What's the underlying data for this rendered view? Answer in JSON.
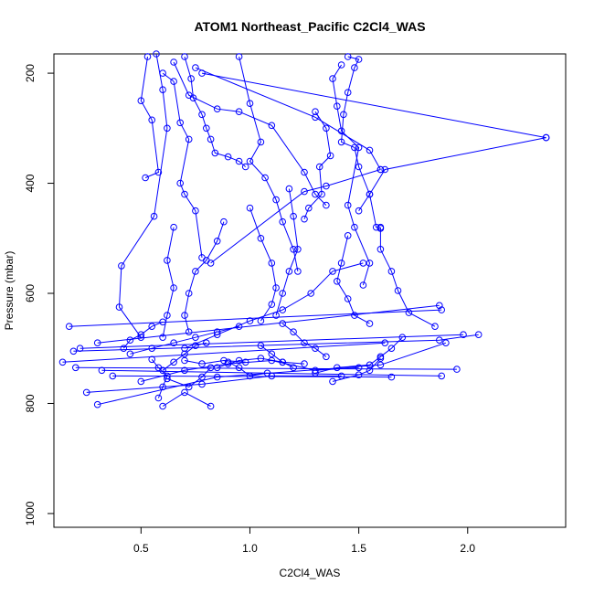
{
  "chart_data": {
    "type": "scatter",
    "title": "ATOM1 Northeast_Pacific C2Cl4_WAS",
    "xlabel": "C2Cl4_WAS",
    "ylabel": "Pressure (mbar)",
    "xlim": [
      0.1,
      2.45
    ],
    "ylim": [
      1025,
      165
    ],
    "y_reversed": true,
    "x_ticks": [
      "0.5",
      "1.0",
      "1.5",
      "2.0"
    ],
    "y_ticks": [
      "200",
      "400",
      "600",
      "800",
      "1000"
    ],
    "grid": false,
    "legend": "none",
    "color": "#0000ff",
    "series": [
      {
        "points": [
          [
            0.53,
            170
          ],
          [
            0.5,
            250
          ],
          [
            0.55,
            285
          ],
          [
            0.58,
            380
          ],
          [
            0.52,
            390
          ]
        ]
      },
      {
        "points": [
          [
            0.57,
            165
          ],
          [
            0.6,
            230
          ],
          [
            0.62,
            300
          ],
          [
            0.56,
            460
          ],
          [
            0.41,
            550
          ],
          [
            0.4,
            625
          ],
          [
            0.5,
            680
          ]
        ]
      },
      {
        "points": [
          [
            0.6,
            200
          ],
          [
            0.65,
            215
          ],
          [
            0.68,
            290
          ],
          [
            0.72,
            320
          ],
          [
            0.68,
            400
          ],
          [
            0.7,
            420
          ],
          [
            0.75,
            450
          ],
          [
            0.78,
            535
          ]
        ]
      },
      {
        "points": [
          [
            0.7,
            170
          ],
          [
            0.73,
            210
          ],
          [
            0.74,
            245
          ],
          [
            0.78,
            275
          ],
          [
            0.8,
            300
          ],
          [
            0.82,
            320
          ],
          [
            0.84,
            345
          ],
          [
            0.9,
            352
          ],
          [
            0.95,
            360
          ],
          [
            0.98,
            370
          ]
        ]
      },
      {
        "points": [
          [
            0.95,
            170
          ],
          [
            1.0,
            255
          ],
          [
            1.05,
            325
          ],
          [
            1.0,
            360
          ],
          [
            1.07,
            390
          ],
          [
            1.12,
            430
          ],
          [
            1.15,
            470
          ],
          [
            1.2,
            520
          ],
          [
            1.22,
            560
          ]
        ]
      },
      {
        "points": [
          [
            0.65,
            180
          ],
          [
            0.72,
            240
          ],
          [
            0.85,
            265
          ],
          [
            0.95,
            270
          ],
          [
            1.1,
            295
          ],
          [
            1.25,
            380
          ],
          [
            1.3,
            420
          ],
          [
            1.35,
            440
          ]
        ]
      },
      {
        "points": [
          [
            1.45,
            170
          ],
          [
            1.5,
            175
          ],
          [
            1.48,
            190
          ],
          [
            1.45,
            235
          ],
          [
            1.43,
            275
          ],
          [
            1.42,
            325
          ],
          [
            1.48,
            335
          ],
          [
            1.5,
            370
          ],
          [
            1.55,
            420
          ],
          [
            1.58,
            480
          ],
          [
            1.6,
            482
          ]
        ]
      },
      {
        "points": [
          [
            1.42,
            185
          ],
          [
            1.38,
            210
          ],
          [
            1.4,
            260
          ],
          [
            1.42,
            305
          ],
          [
            1.5,
            335
          ],
          [
            1.45,
            440
          ],
          [
            1.48,
            480
          ],
          [
            1.55,
            545
          ],
          [
            1.52,
            585
          ]
        ]
      },
      {
        "points": [
          [
            1.3,
            270
          ],
          [
            1.35,
            300
          ],
          [
            1.37,
            350
          ],
          [
            1.32,
            370
          ],
          [
            1.33,
            420
          ],
          [
            1.27,
            445
          ],
          [
            1.25,
            465
          ]
        ]
      },
      {
        "points": [
          [
            2.36,
            317
          ],
          [
            1.62,
            375
          ],
          [
            1.55,
            420
          ],
          [
            1.5,
            450
          ]
        ]
      },
      {
        "points": [
          [
            0.75,
            190
          ],
          [
            1.3,
            280
          ],
          [
            1.55,
            340
          ],
          [
            1.6,
            375
          ]
        ]
      },
      {
        "points": [
          [
            0.78,
            200
          ],
          [
            2.36,
            317
          ]
        ]
      },
      {
        "points": [
          [
            1.18,
            410
          ],
          [
            1.2,
            460
          ],
          [
            1.22,
            520
          ],
          [
            1.18,
            560
          ],
          [
            1.15,
            600
          ],
          [
            1.12,
            640
          ]
        ]
      },
      {
        "points": [
          [
            1.0,
            445
          ],
          [
            1.05,
            500
          ],
          [
            1.1,
            545
          ],
          [
            1.12,
            590
          ],
          [
            1.1,
            620
          ],
          [
            1.05,
            650
          ]
        ]
      },
      {
        "points": [
          [
            0.88,
            470
          ],
          [
            0.85,
            505
          ],
          [
            0.8,
            540
          ],
          [
            0.75,
            560
          ],
          [
            0.72,
            600
          ],
          [
            0.7,
            640
          ],
          [
            0.72,
            670
          ]
        ]
      },
      {
        "points": [
          [
            0.82,
            545
          ],
          [
            1.25,
            415
          ],
          [
            1.35,
            405
          ],
          [
            1.6,
            375
          ]
        ]
      },
      {
        "points": [
          [
            0.65,
            480
          ],
          [
            0.62,
            540
          ],
          [
            0.65,
            590
          ],
          [
            0.62,
            640
          ],
          [
            0.6,
            680
          ]
        ]
      },
      {
        "points": [
          [
            1.45,
            495
          ],
          [
            1.42,
            545
          ],
          [
            1.4,
            578
          ],
          [
            1.45,
            610
          ],
          [
            1.48,
            640
          ],
          [
            1.55,
            655
          ]
        ]
      },
      {
        "points": [
          [
            1.6,
            480
          ],
          [
            1.6,
            520
          ],
          [
            1.65,
            560
          ],
          [
            1.68,
            595
          ],
          [
            1.73,
            635
          ],
          [
            1.85,
            660
          ]
        ]
      },
      {
        "points": [
          [
            1.52,
            545
          ],
          [
            1.38,
            560
          ],
          [
            1.28,
            600
          ],
          [
            1.15,
            630
          ],
          [
            1.0,
            650
          ],
          [
            0.85,
            675
          ],
          [
            0.7,
            700
          ]
        ]
      },
      {
        "points": [
          [
            0.3,
            690
          ],
          [
            1.87,
            622
          ]
        ]
      },
      {
        "points": [
          [
            0.17,
            660
          ],
          [
            1.88,
            630
          ]
        ]
      },
      {
        "points": [
          [
            0.22,
            700
          ],
          [
            1.98,
            675
          ]
        ]
      },
      {
        "points": [
          [
            0.19,
            705
          ],
          [
            1.87,
            685
          ],
          [
            2.05,
            675
          ]
        ]
      },
      {
        "points": [
          [
            0.14,
            725
          ],
          [
            1.62,
            690
          ]
        ]
      },
      {
        "points": [
          [
            0.2,
            735
          ],
          [
            1.95,
            738
          ]
        ]
      },
      {
        "points": [
          [
            0.32,
            740
          ],
          [
            1.88,
            750
          ]
        ]
      },
      {
        "points": [
          [
            0.37,
            750
          ],
          [
            1.65,
            752
          ]
        ]
      },
      {
        "points": [
          [
            0.3,
            802
          ],
          [
            0.85,
            752
          ],
          [
            1.6,
            730
          ],
          [
            1.9,
            690
          ]
        ]
      },
      {
        "points": [
          [
            0.25,
            780
          ],
          [
            0.78,
            765
          ],
          [
            1.1,
            750
          ],
          [
            1.42,
            750
          ]
        ]
      },
      {
        "points": [
          [
            0.58,
            790
          ],
          [
            0.6,
            770
          ],
          [
            0.62,
            750
          ],
          [
            0.58,
            735
          ],
          [
            0.55,
            720
          ]
        ]
      },
      {
        "points": [
          [
            0.6,
            805
          ],
          [
            0.7,
            780
          ],
          [
            0.82,
            805
          ]
        ]
      },
      {
        "points": [
          [
            0.42,
            700
          ],
          [
            0.45,
            685
          ],
          [
            0.5,
            675
          ],
          [
            0.55,
            660
          ],
          [
            0.6,
            652
          ]
        ]
      },
      {
        "points": [
          [
            0.85,
            735
          ],
          [
            0.95,
            722
          ],
          [
            1.05,
            718
          ],
          [
            1.15,
            725
          ],
          [
            1.25,
            728
          ]
        ]
      },
      {
        "points": [
          [
            0.5,
            760
          ],
          [
            0.7,
            740
          ],
          [
            0.9,
            728
          ],
          [
            1.1,
            722
          ],
          [
            1.3,
            740
          ],
          [
            1.5,
            735
          ]
        ]
      },
      {
        "points": [
          [
            1.3,
            745
          ],
          [
            1.4,
            735
          ],
          [
            1.55,
            730
          ],
          [
            1.6,
            715
          ],
          [
            1.65,
            700
          ],
          [
            1.7,
            680
          ]
        ]
      },
      {
        "points": [
          [
            1.38,
            760
          ],
          [
            1.5,
            748
          ],
          [
            1.55,
            740
          ],
          [
            1.6,
            718
          ]
        ]
      },
      {
        "points": [
          [
            0.45,
            710
          ],
          [
            0.55,
            700
          ],
          [
            0.65,
            690
          ],
          [
            0.75,
            680
          ],
          [
            0.85,
            670
          ],
          [
            0.95,
            660
          ]
        ]
      },
      {
        "points": [
          [
            0.6,
            740
          ],
          [
            0.65,
            725
          ],
          [
            0.7,
            710
          ],
          [
            0.75,
            695
          ],
          [
            0.8,
            690
          ]
        ]
      },
      {
        "points": [
          [
            1.05,
            695
          ],
          [
            1.1,
            710
          ],
          [
            1.15,
            725
          ],
          [
            1.2,
            735
          ]
        ]
      },
      {
        "points": [
          [
            1.15,
            655
          ],
          [
            1.2,
            670
          ],
          [
            1.25,
            690
          ],
          [
            1.3,
            700
          ],
          [
            1.35,
            715
          ]
        ]
      },
      {
        "points": [
          [
            0.9,
            725
          ],
          [
            0.95,
            735
          ],
          [
            1.0,
            750
          ],
          [
            1.08,
            745
          ]
        ]
      },
      {
        "points": [
          [
            0.62,
            755
          ],
          [
            0.72,
            770
          ],
          [
            0.78,
            752
          ],
          [
            0.82,
            735
          ]
        ]
      },
      {
        "points": [
          [
            0.7,
            722
          ],
          [
            0.78,
            728
          ],
          [
            0.88,
            722
          ],
          [
            0.98,
            725
          ]
        ]
      }
    ]
  }
}
